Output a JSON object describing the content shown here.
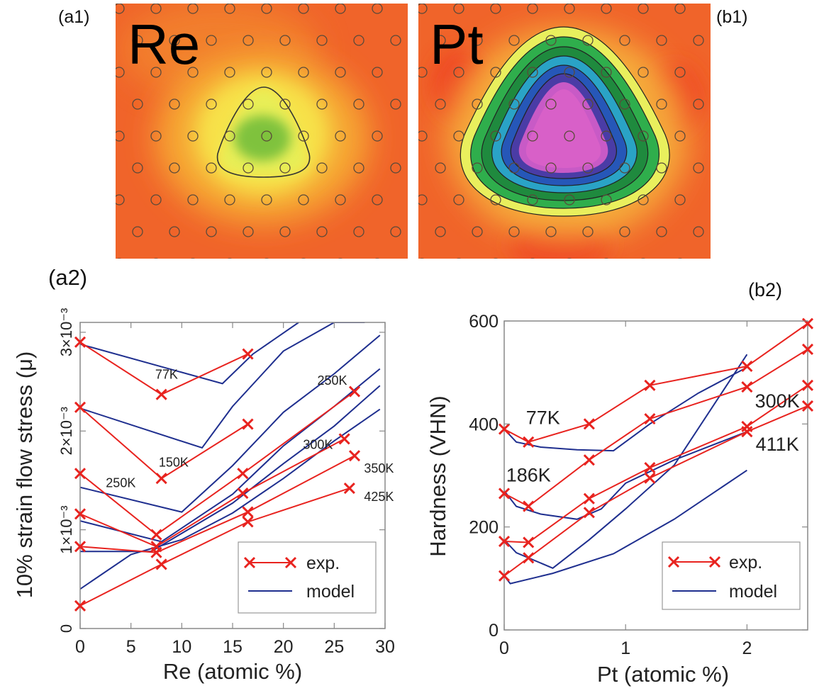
{
  "panels": {
    "a1": {
      "tag": "(a1)",
      "element": "Re"
    },
    "b1": {
      "tag": "(b1)",
      "element": "Pt"
    },
    "a2": {
      "tag": "(a2)"
    },
    "b2": {
      "tag": "(b2)"
    }
  },
  "colors": {
    "exp": "#e8231f",
    "model": "#1f2f8f",
    "background_map": "#f0642a"
  },
  "chart_data": [
    {
      "id": "a2",
      "type": "line",
      "xlabel": "Re (atomic %)",
      "ylabel": "10% strain flow stress (μ)",
      "xlim": [
        0,
        30
      ],
      "ylim": [
        0,
        0.0031
      ],
      "xticks": [
        0,
        5,
        10,
        15,
        20,
        25,
        30
      ],
      "xtick_labels": [
        "0",
        "5",
        "10",
        "15",
        "20",
        "25",
        "30"
      ],
      "yticks": [
        0,
        0.001,
        0.002,
        0.003
      ],
      "ytick_labels": [
        "0",
        "1×10⁻³",
        "2×10⁻³",
        "3×10⁻³"
      ],
      "legend": {
        "position": "bottom-right",
        "entries": [
          "exp.",
          "model"
        ]
      },
      "exp_series": [
        {
          "name": "77K",
          "x": [
            0,
            8,
            16.5
          ],
          "y": [
            0.0029,
            0.00237,
            0.00278
          ]
        },
        {
          "name": "150K",
          "x": [
            0,
            8,
            16.5
          ],
          "y": [
            0.00224,
            0.00152,
            0.00207
          ]
        },
        {
          "name": "250K",
          "x": [
            0,
            7.5,
            16,
            27
          ],
          "y": [
            0.00157,
            0.00095,
            0.00157,
            0.0024
          ]
        },
        {
          "name": "300K",
          "x": [
            0,
            7.5,
            16,
            26
          ],
          "y": [
            0.00116,
            0.00083,
            0.00137,
            0.00192
          ]
        },
        {
          "name": "350K",
          "x": [
            0,
            7.5,
            16.5,
            27
          ],
          "y": [
            0.00083,
            0.00077,
            0.00118,
            0.00175
          ]
        },
        {
          "name": "425K",
          "x": [
            0,
            8,
            16.5,
            26.5
          ],
          "y": [
            0.00023,
            0.00065,
            0.00108,
            0.00142
          ]
        }
      ],
      "model_series": [
        {
          "x": [
            0,
            14,
            17,
            21.5
          ],
          "y": [
            0.00288,
            0.00248,
            0.00278,
            0.0031
          ]
        },
        {
          "x": [
            0,
            12,
            15,
            20,
            25,
            28
          ],
          "y": [
            0.00223,
            0.00183,
            0.00225,
            0.00281,
            0.0031,
            0.0031
          ]
        },
        {
          "x": [
            0,
            10,
            15,
            20,
            25,
            29.5
          ],
          "y": [
            0.00143,
            0.00118,
            0.00165,
            0.00219,
            0.00258,
            0.00297
          ]
        },
        {
          "x": [
            0,
            8,
            15,
            20,
            25,
            29.5
          ],
          "y": [
            0.00109,
            0.00088,
            0.00136,
            0.00185,
            0.00225,
            0.00263
          ]
        },
        {
          "x": [
            0,
            7,
            15,
            20,
            25,
            29.5
          ],
          "y": [
            0.00078,
            0.00078,
            0.00127,
            0.00167,
            0.00205,
            0.00246
          ]
        },
        {
          "x": [
            0,
            5,
            10,
            15,
            20,
            25,
            29.5
          ],
          "y": [
            0.0004,
            0.00075,
            0.0009,
            0.00117,
            0.00152,
            0.0019,
            0.00222
          ]
        }
      ],
      "annotations": [
        {
          "text": "77K",
          "x": 8.5,
          "y": 0.00253
        },
        {
          "text": "150K",
          "x": 9.2,
          "y": 0.00164
        },
        {
          "text": "250K",
          "x": 4.0,
          "y": 0.00143
        },
        {
          "text": "250K",
          "x": 24.8,
          "y": 0.00247
        },
        {
          "text": "300K",
          "x": 23.4,
          "y": 0.00182
        },
        {
          "text": "350K",
          "x": 29.4,
          "y": 0.00158
        },
        {
          "text": "425K",
          "x": 29.4,
          "y": 0.00129
        }
      ]
    },
    {
      "id": "b2",
      "type": "line",
      "xlabel": "Pt (atomic %)",
      "ylabel": "Hardness (VHN)",
      "xlim": [
        0,
        2.5
      ],
      "ylim": [
        0,
        600
      ],
      "xticks": [
        0,
        1,
        2
      ],
      "xtick_labels": [
        "0",
        "1",
        "2"
      ],
      "yticks": [
        0,
        200,
        400,
        600
      ],
      "ytick_labels": [
        "0",
        "200",
        "400",
        "600"
      ],
      "legend": {
        "position": "bottom-right",
        "entries": [
          "exp.",
          "model"
        ]
      },
      "exp_series": [
        {
          "name": "77K",
          "x": [
            0,
            0.2,
            0.7,
            1.2,
            2.0,
            2.5
          ],
          "y": [
            390,
            365,
            400,
            475,
            512,
            595
          ]
        },
        {
          "name": "186K",
          "x": [
            0,
            0.2,
            0.7,
            1.2,
            2.0,
            2.5
          ],
          "y": [
            265,
            240,
            330,
            410,
            472,
            545
          ]
        },
        {
          "name": "300K",
          "x": [
            0,
            0.2,
            0.7,
            1.2,
            2.0,
            2.5
          ],
          "y": [
            172,
            170,
            255,
            315,
            395,
            475
          ]
        },
        {
          "name": "411K",
          "x": [
            0,
            0.2,
            0.7,
            1.2,
            2.0,
            2.5
          ],
          "y": [
            105,
            140,
            228,
            295,
            385,
            435
          ]
        }
      ],
      "model_series": [
        {
          "x": [
            0,
            0.1,
            0.3,
            0.6,
            0.9,
            1.2,
            1.6,
            2.0
          ],
          "y": [
            390,
            365,
            355,
            350,
            348,
            400,
            460,
            510
          ]
        },
        {
          "x": [
            0,
            0.1,
            0.3,
            0.6,
            0.8,
            1.0,
            1.4,
            2.0
          ],
          "y": [
            270,
            240,
            225,
            215,
            235,
            285,
            330,
            385
          ]
        },
        {
          "x": [
            0,
            0.1,
            0.4,
            0.7,
            1.0,
            1.4,
            2.0
          ],
          "y": [
            175,
            150,
            120,
            175,
            235,
            320,
            535
          ]
        },
        {
          "x": [
            0,
            0.05,
            0.4,
            0.9,
            1.4,
            2.0
          ],
          "y": [
            105,
            90,
            110,
            148,
            215,
            310
          ]
        }
      ],
      "annotations": [
        {
          "text": "77K",
          "x": 0.32,
          "y": 400
        },
        {
          "text": "186K",
          "x": 0.2,
          "y": 288
        },
        {
          "text": "300K",
          "x": 2.25,
          "y": 432
        },
        {
          "text": "411K",
          "x": 2.25,
          "y": 348
        }
      ]
    }
  ]
}
